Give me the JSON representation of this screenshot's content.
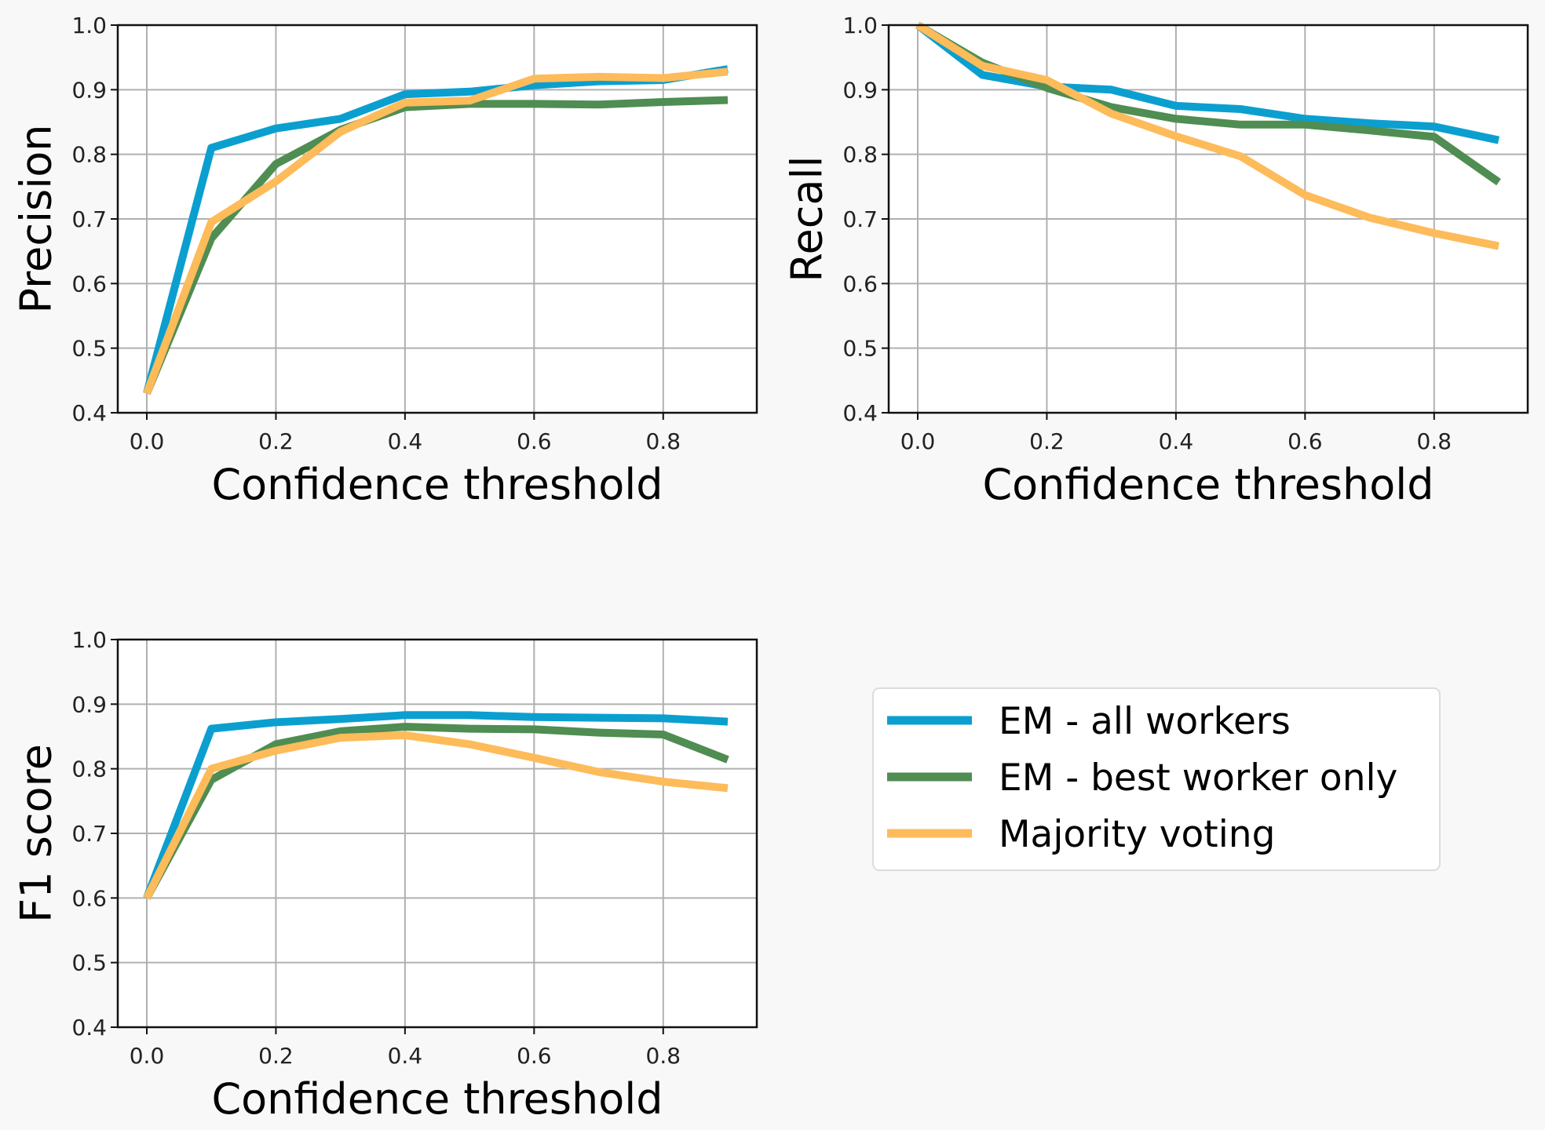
{
  "x_ticks": [
    "0.0",
    "0.2",
    "0.4",
    "0.6",
    "0.8"
  ],
  "y_ticks": [
    "0.4",
    "0.5",
    "0.6",
    "0.7",
    "0.8",
    "0.9",
    "1.0"
  ],
  "colors": {
    "em_all": "#0b9fd0",
    "em_best": "#4f8d52",
    "majority": "#fdbb5a"
  },
  "legend": {
    "items": [
      {
        "name": "EM - all workers",
        "color": "#0b9fd0"
      },
      {
        "name": "EM - best worker only",
        "color": "#4f8d52"
      },
      {
        "name": "Majority voting",
        "color": "#fdbb5a"
      }
    ]
  },
  "chart_data": [
    {
      "type": "line",
      "ylabel": "Precision",
      "xlabel": "Confidence threshold",
      "xlim": [
        -0.045,
        0.945
      ],
      "ylim": [
        0.4,
        1.0
      ],
      "grid": true,
      "x": [
        0.0,
        0.1,
        0.2,
        0.3,
        0.4,
        0.5,
        0.6,
        0.7,
        0.8,
        0.9
      ],
      "series": [
        {
          "name": "EM - all workers",
          "values": [
            0.43,
            0.81,
            0.84,
            0.855,
            0.893,
            0.897,
            0.907,
            0.913,
            0.915,
            0.932
          ]
        },
        {
          "name": "EM - best worker only",
          "values": [
            0.43,
            0.67,
            0.785,
            0.838,
            0.873,
            0.878,
            0.878,
            0.877,
            0.881,
            0.884
          ]
        },
        {
          "name": "Majority voting",
          "values": [
            0.43,
            0.695,
            0.758,
            0.835,
            0.88,
            0.883,
            0.917,
            0.92,
            0.918,
            0.928
          ]
        }
      ]
    },
    {
      "type": "line",
      "ylabel": "Recall",
      "xlabel": "Confidence threshold",
      "xlim": [
        -0.045,
        0.945
      ],
      "ylim": [
        0.4,
        1.0
      ],
      "grid": true,
      "x": [
        0.0,
        0.1,
        0.2,
        0.3,
        0.4,
        0.5,
        0.6,
        0.7,
        0.8,
        0.9
      ],
      "series": [
        {
          "name": "EM - all workers",
          "values": [
            1.0,
            0.923,
            0.905,
            0.9,
            0.875,
            0.87,
            0.855,
            0.848,
            0.843,
            0.822
          ]
        },
        {
          "name": "EM - best worker only",
          "values": [
            1.0,
            0.942,
            0.903,
            0.873,
            0.855,
            0.846,
            0.846,
            0.837,
            0.827,
            0.757
          ]
        },
        {
          "name": "Majority voting",
          "values": [
            1.0,
            0.937,
            0.915,
            0.863,
            0.828,
            0.797,
            0.737,
            0.702,
            0.678,
            0.658
          ]
        }
      ]
    },
    {
      "type": "line",
      "ylabel": "F1 score",
      "xlabel": "Confidence threshold",
      "xlim": [
        -0.045,
        0.945
      ],
      "ylim": [
        0.4,
        1.0
      ],
      "grid": true,
      "x": [
        0.0,
        0.1,
        0.2,
        0.3,
        0.4,
        0.5,
        0.6,
        0.7,
        0.8,
        0.9
      ],
      "series": [
        {
          "name": "EM - all workers",
          "values": [
            0.6,
            0.862,
            0.872,
            0.877,
            0.883,
            0.883,
            0.88,
            0.879,
            0.878,
            0.873
          ]
        },
        {
          "name": "EM - best worker only",
          "values": [
            0.6,
            0.783,
            0.838,
            0.858,
            0.865,
            0.862,
            0.861,
            0.856,
            0.853,
            0.814
          ]
        },
        {
          "name": "Majority voting",
          "values": [
            0.6,
            0.8,
            0.828,
            0.848,
            0.852,
            0.838,
            0.817,
            0.795,
            0.78,
            0.77
          ]
        }
      ]
    }
  ]
}
